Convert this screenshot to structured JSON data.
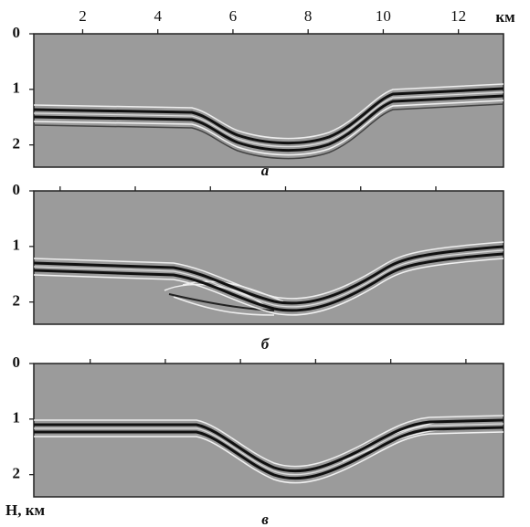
{
  "chart_data": [
    {
      "type": "image",
      "caption": "а",
      "xlabel": "км",
      "xlim": [
        0.7,
        13.2
      ],
      "xticks": [
        2,
        4,
        6,
        8,
        10,
        12
      ],
      "show_xtick_labels": true,
      "ylim": [
        0,
        2.4
      ],
      "yticks": [
        0,
        1,
        2
      ]
    },
    {
      "type": "image",
      "caption": "б",
      "xlim": [
        1.3,
        13.8
      ],
      "xticks": [
        2,
        4,
        6,
        8,
        10,
        12
      ],
      "show_xtick_labels": false,
      "ylim": [
        0,
        2.4
      ],
      "yticks": [
        0,
        1,
        2
      ]
    },
    {
      "type": "image",
      "caption": "в",
      "ylabel": "H, км",
      "xlim": [
        0.5,
        13.0
      ],
      "xticks": [
        2,
        4,
        6,
        8,
        10,
        12
      ],
      "show_xtick_labels": false,
      "ylim": [
        0,
        2.4
      ],
      "yticks": [
        0,
        1,
        2
      ]
    }
  ]
}
